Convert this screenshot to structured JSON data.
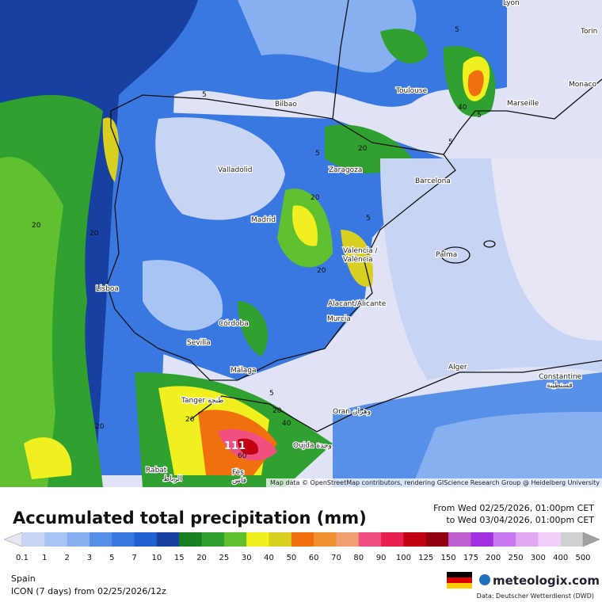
{
  "map": {
    "attribution": "Map data © OpenStreetMap contributors, rendering GIScience Research Group @ Heidelberg University",
    "cities": {
      "lyon": "Lyon",
      "torino": "Torin",
      "toulouse": "Toulouse",
      "monaco": "Monaco",
      "marseille": "Marseille",
      "bilbao": "Bilbao",
      "valladolid": "Valladolid",
      "zaragoza": "Zaragoza",
      "barcelona": "Barcelona",
      "madrid": "Madrid",
      "valencia1": "Valencia /",
      "valencia2": "València",
      "palma": "Palma",
      "lisboa": "Lisboa",
      "alicante": "Alacant/Alicante",
      "murcia": "Murcia",
      "cordoba": "Córdoba",
      "sevilla": "Sevilla",
      "malaga": "Málaga",
      "alger": "Alger",
      "constantine1": "Constantine",
      "constantine2": "قسنطينة",
      "tanger": "Tanger طنجة",
      "oran": "Oran وهران",
      "oujda": "Oujda وجدة",
      "rabat1": "Rabat",
      "rabat2": "الرباط",
      "fes1": "Fès",
      "fes2": "فاس"
    },
    "contours": [
      "5",
      "5",
      "5",
      "5",
      "20",
      "20",
      "20",
      "20",
      "20",
      "40",
      "40",
      "20",
      "60",
      "111",
      "5",
      "5",
      "5",
      "20",
      "20"
    ]
  },
  "header": {
    "title": "Accumulated total precipitation (mm)",
    "from": "From Wed 02/25/2026, 01:00pm CET",
    "to": "to Wed 03/04/2026, 01:00pm CET"
  },
  "legend": {
    "levels": [
      0.1,
      1,
      2,
      3,
      5,
      7,
      10,
      15,
      20,
      25,
      30,
      40,
      50,
      60,
      70,
      80,
      90,
      100,
      125,
      150,
      175,
      200,
      250,
      300,
      400,
      500
    ],
    "colors": [
      "#e6e6f4",
      "#c8d4f4",
      "#a8c4f4",
      "#88b0f0",
      "#5890e8",
      "#3878e0",
      "#2060d0",
      "#1840a0",
      "#188020",
      "#30a030",
      "#60c030",
      "#f0f020",
      "#d8d020",
      "#f07010",
      "#f09030",
      "#f0a070",
      "#f05080",
      "#e82050",
      "#c00010",
      "#900010",
      "#c060d0",
      "#a030e0",
      "#c878f0",
      "#e0a8f0",
      "#f0d0f8",
      "#d0d0d0",
      "#a0a0a0"
    ]
  },
  "footer": {
    "region": "Spain",
    "model": "ICON (7 days)  from  02/25/2026/12z",
    "brand": "meteologix.com",
    "source": "Data: Deutscher Wetterdienst (DWD)"
  }
}
